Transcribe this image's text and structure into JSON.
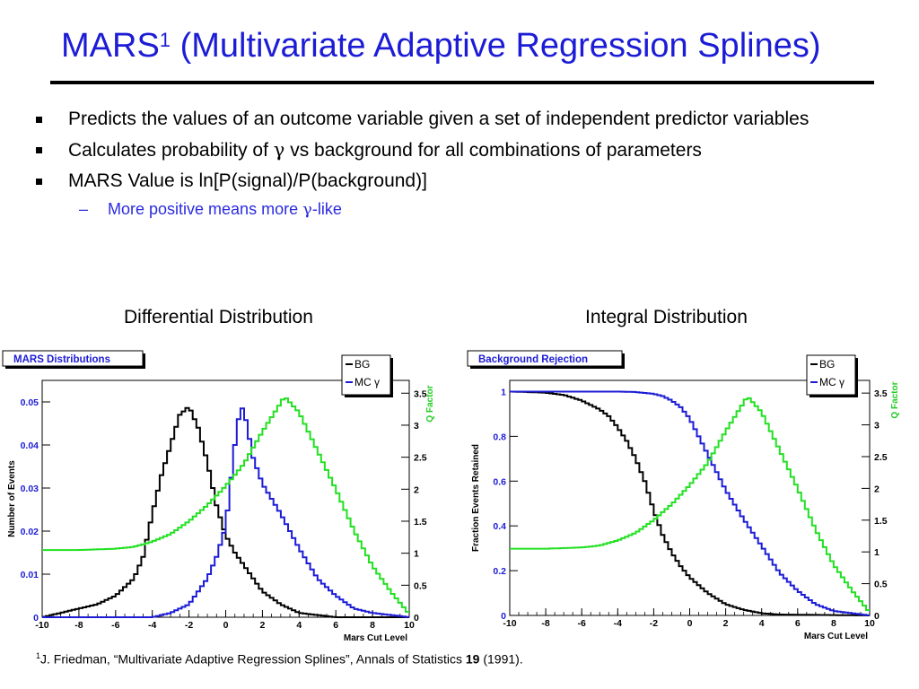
{
  "slide": {
    "title_main": "MARS",
    "title_sup": "1",
    "title_rest": " (Multivariate Adaptive Regression Splines)",
    "bullets": [
      "Predicts the values of an outcome variable given a set of independent predictor variables",
      "Calculates probability of",
      "vs background for all combinations of parameters",
      "MARS Value is ln[P(signal)/P(background)]"
    ],
    "gamma": "γ",
    "sub_bullet_pre": "More positive means more ",
    "sub_bullet_post": "-like",
    "left_caption": "Differential Distribution",
    "right_caption": "Integral Distribution",
    "footnote_sup": "1",
    "footnote_text": "J. Friedman, “Multivariate Adaptive Regression Splines”, Annals of Statistics ",
    "footnote_bold": "19",
    "footnote_end": " (1991)."
  },
  "colors": {
    "title": "#1c1cd6",
    "bg_line": "#000000",
    "mc_line": "#1c1cd6",
    "q_line": "#22e022",
    "q_axis": "#22cc22"
  },
  "chart_data": [
    {
      "type": "line",
      "title": "MARS Distributions",
      "xlabel": "Mars Cut Level",
      "ylabel": "Number of Events",
      "y2label": "Q Factor",
      "xlim": [
        -10,
        10
      ],
      "ylim": [
        0,
        0.055
      ],
      "y2lim": [
        0,
        3.7
      ],
      "xticks": [
        -10,
        -8,
        -6,
        -4,
        -2,
        0,
        2,
        4,
        6,
        8,
        10
      ],
      "yticks": [
        0,
        0.01,
        0.02,
        0.03,
        0.04,
        0.05
      ],
      "ytick_labels": [
        "0",
        "0.01",
        "0.02",
        "0.03",
        "0.04",
        "0.05"
      ],
      "y2ticks": [
        0,
        0.5,
        1,
        1.5,
        2,
        2.5,
        3,
        3.5
      ],
      "y2tick_labels": [
        "0",
        "0.5",
        "1",
        "1.5",
        "2",
        "2.5",
        "3",
        "3.5"
      ],
      "legend": [
        "BG",
        "MC γ"
      ],
      "legend_position": "top-right",
      "series": [
        {
          "name": "BG",
          "axis": "left",
          "x": [
            -10,
            -9,
            -8,
            -7,
            -6,
            -5,
            -4.5,
            -4,
            -3.5,
            -3,
            -2.5,
            -2,
            -1.5,
            -1,
            -0.5,
            0,
            0.5,
            1,
            1.5,
            2,
            3,
            4,
            5,
            6,
            10
          ],
          "y": [
            0,
            0.001,
            0.002,
            0.003,
            0.005,
            0.009,
            0.014,
            0.024,
            0.033,
            0.04,
            0.047,
            0.049,
            0.044,
            0.036,
            0.026,
            0.019,
            0.015,
            0.012,
            0.009,
            0.006,
            0.003,
            0.001,
            0.0005,
            0,
            0
          ]
        },
        {
          "name": "MC γ",
          "axis": "left",
          "x": [
            -10,
            -4,
            -3,
            -2,
            -1,
            -0.5,
            0,
            0.5,
            0.8,
            1,
            1.5,
            2,
            3,
            4,
            5,
            6,
            7,
            8,
            10
          ],
          "y": [
            0,
            0,
            0.001,
            0.003,
            0.009,
            0.014,
            0.021,
            0.04,
            0.049,
            0.048,
            0.037,
            0.031,
            0.024,
            0.016,
            0.009,
            0.005,
            0.002,
            0.001,
            0
          ]
        },
        {
          "name": "Q Factor",
          "axis": "right",
          "x": [
            -10,
            -8,
            -6,
            -5,
            -4,
            -3,
            -2,
            -1,
            0,
            1,
            2,
            3,
            3.2,
            4,
            5,
            6,
            7,
            8,
            9,
            10
          ],
          "y": [
            1.05,
            1.05,
            1.07,
            1.1,
            1.18,
            1.3,
            1.5,
            1.75,
            2.05,
            2.4,
            2.9,
            3.35,
            3.45,
            3.2,
            2.6,
            2.0,
            1.35,
            0.8,
            0.4,
            0.05
          ]
        }
      ]
    },
    {
      "type": "line",
      "title": "Background Rejection",
      "xlabel": "Mars Cut Level",
      "ylabel": "Fraction Events Retained",
      "y2label": "Q Factor",
      "xlim": [
        -10,
        10
      ],
      "ylim": [
        0,
        1.05
      ],
      "y2lim": [
        0,
        3.7
      ],
      "xticks": [
        -10,
        -8,
        -6,
        -4,
        -2,
        0,
        2,
        4,
        6,
        8,
        10
      ],
      "yticks": [
        0,
        0.2,
        0.4,
        0.6,
        0.8,
        1
      ],
      "ytick_labels": [
        "0",
        "0.2",
        "0.4",
        "0.6",
        "0.8",
        "1"
      ],
      "y2ticks": [
        0,
        0.5,
        1,
        1.5,
        2,
        2.5,
        3,
        3.5
      ],
      "y2tick_labels": [
        "0",
        "0.5",
        "1",
        "1.5",
        "2",
        "2.5",
        "3",
        "3.5"
      ],
      "legend": [
        "BG",
        "MC γ"
      ],
      "legend_position": "top-right",
      "series": [
        {
          "name": "BG",
          "axis": "left",
          "x": [
            -10,
            -9,
            -8,
            -7,
            -6,
            -5,
            -4.5,
            -4,
            -3.5,
            -3,
            -2.5,
            -2,
            -1.5,
            -1,
            -0.5,
            0,
            1,
            2,
            3,
            4,
            5,
            10
          ],
          "y": [
            1,
            0.998,
            0.995,
            0.985,
            0.96,
            0.92,
            0.89,
            0.84,
            0.78,
            0.7,
            0.6,
            0.47,
            0.36,
            0.28,
            0.22,
            0.17,
            0.1,
            0.05,
            0.025,
            0.01,
            0.004,
            0
          ]
        },
        {
          "name": "MC γ",
          "axis": "left",
          "x": [
            -10,
            -4,
            -3,
            -2,
            -1.5,
            -1,
            -0.5,
            0,
            0.5,
            1,
            1.5,
            2,
            3,
            4,
            5,
            6,
            7,
            8,
            10
          ],
          "y": [
            1,
            1,
            0.998,
            0.99,
            0.98,
            0.96,
            0.93,
            0.88,
            0.8,
            0.72,
            0.64,
            0.56,
            0.43,
            0.31,
            0.19,
            0.11,
            0.05,
            0.02,
            0
          ]
        },
        {
          "name": "Q Factor",
          "axis": "right",
          "x": [
            -10,
            -8,
            -6,
            -5,
            -4,
            -3,
            -2,
            -1,
            0,
            1,
            2,
            3,
            3.2,
            4,
            5,
            6,
            7,
            8,
            9,
            10
          ],
          "y": [
            1.05,
            1.05,
            1.07,
            1.1,
            1.18,
            1.3,
            1.5,
            1.75,
            2.05,
            2.4,
            2.9,
            3.35,
            3.45,
            3.2,
            2.6,
            2.0,
            1.35,
            0.8,
            0.4,
            0.05
          ]
        }
      ]
    }
  ]
}
